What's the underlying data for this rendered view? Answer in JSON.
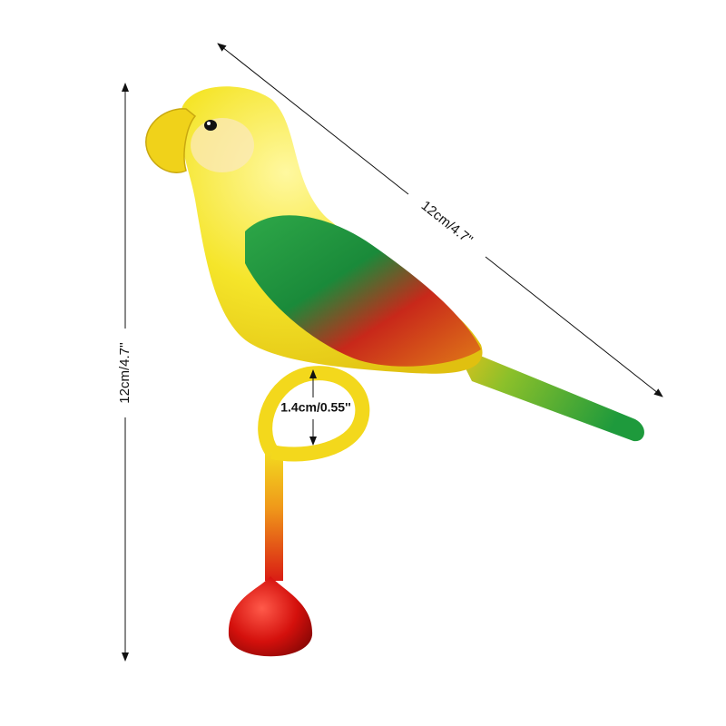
{
  "dimensions": {
    "height": "12cm/4.7''",
    "length": "12cm/4.7\"",
    "ring_diameter": "1.4cm/0.55''"
  }
}
